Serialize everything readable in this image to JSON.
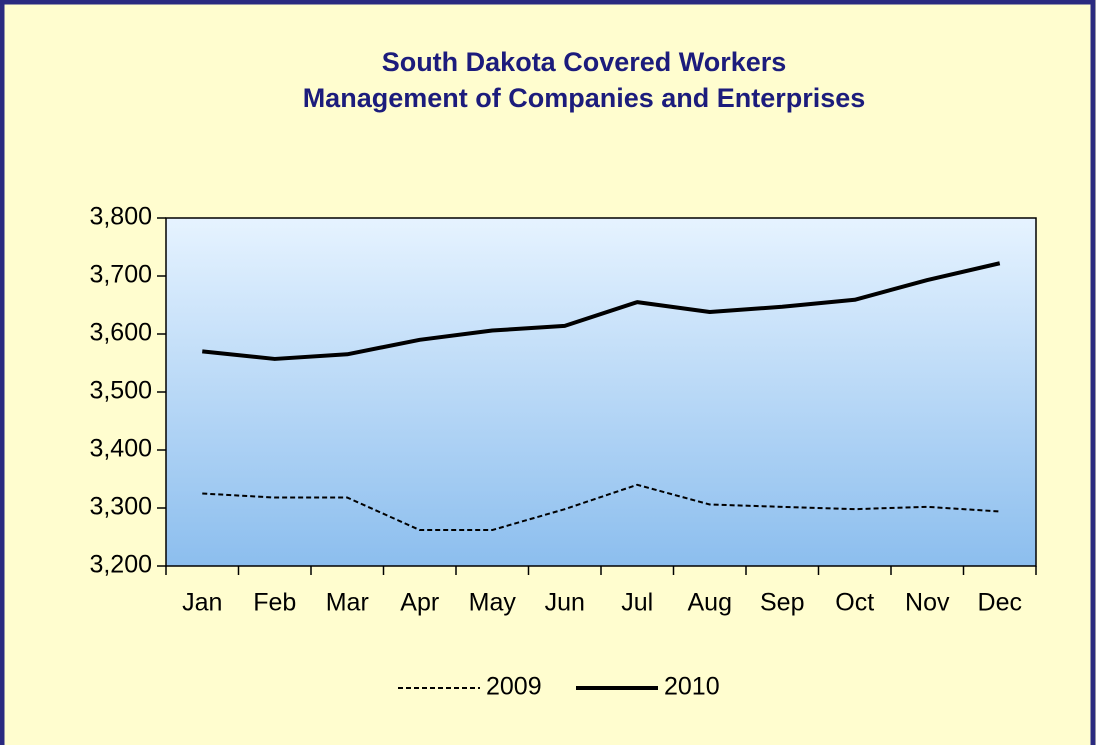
{
  "chart_data": {
    "type": "line",
    "title": "South Dakota Covered Workers",
    "subtitle": "Management of Companies and Enterprises",
    "categories": [
      "Jan",
      "Feb",
      "Mar",
      "Apr",
      "May",
      "Jun",
      "Jul",
      "Aug",
      "Sep",
      "Oct",
      "Nov",
      "Dec"
    ],
    "series": [
      {
        "name": "2009",
        "color": "#000000",
        "dash": "dashed",
        "values": [
          3325,
          3318,
          3318,
          3262,
          3262,
          3298,
          3340,
          3306,
          3302,
          3298,
          3302,
          3294
        ]
      },
      {
        "name": "2010",
        "color": "#000000",
        "dash": "solid",
        "values": [
          3570,
          3557,
          3565,
          3590,
          3606,
          3614,
          3655,
          3638,
          3647,
          3659,
          3693,
          3722
        ]
      }
    ],
    "ylim": [
      3200,
      3800
    ],
    "yticks": [
      {
        "value": 3200,
        "label": "3,200"
      },
      {
        "value": 3300,
        "label": "3,300"
      },
      {
        "value": 3400,
        "label": "3,400"
      },
      {
        "value": 3500,
        "label": "3,500"
      },
      {
        "value": 3600,
        "label": "3,600"
      },
      {
        "value": 3700,
        "label": "3,700"
      },
      {
        "value": 3800,
        "label": "3,800"
      }
    ],
    "legend": "bottom"
  }
}
